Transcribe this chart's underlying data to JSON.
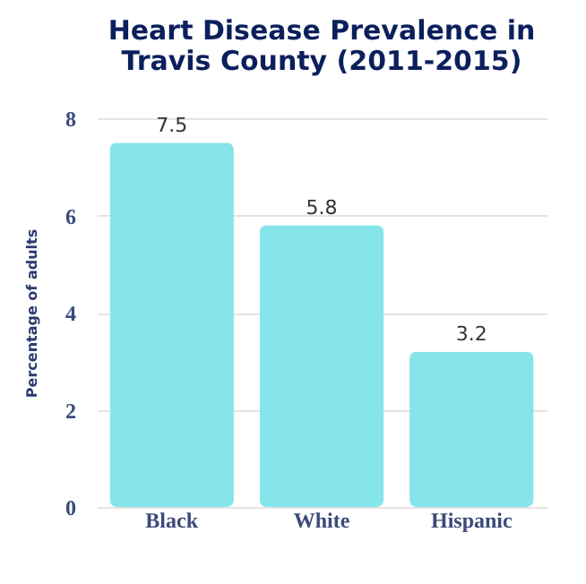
{
  "chart_data": {
    "type": "bar",
    "title": [
      "Heart Disease Prevalence in",
      "Travis County (2011-2015)"
    ],
    "ylabel": "Percentage of adults",
    "categories": [
      "Black",
      "White",
      "Hispanic"
    ],
    "values": [
      7.5,
      5.8,
      3.2
    ],
    "color": "#86e5ea",
    "ylim": [
      0,
      8
    ],
    "yticks": [
      0,
      2,
      4,
      6,
      8
    ],
    "grid": "y",
    "data_labels": true
  }
}
